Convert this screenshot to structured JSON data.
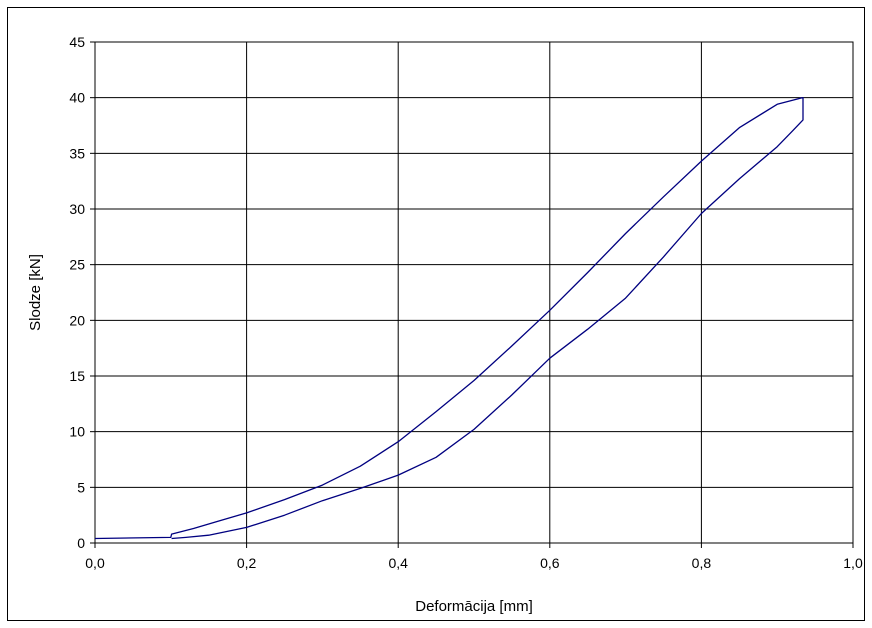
{
  "chart_data": {
    "type": "line",
    "title": "",
    "xlabel": "Deformācija [mm]",
    "ylabel": "Slodze [kN]",
    "xlim": [
      0,
      1.0
    ],
    "ylim": [
      0,
      45
    ],
    "x_ticks": [
      0,
      0.2,
      0.4,
      0.6,
      0.8,
      1.0
    ],
    "x_tick_labels": [
      "0,0",
      "0,2",
      "0,4",
      "0,6",
      "0,8",
      "1,0"
    ],
    "y_ticks": [
      0,
      5,
      10,
      15,
      20,
      25,
      30,
      35,
      40,
      45
    ],
    "y_tick_labels": [
      "0",
      "5",
      "10",
      "15",
      "20",
      "25",
      "30",
      "35",
      "40",
      "45"
    ],
    "grid": true,
    "legend": "none",
    "line_color": "#000080",
    "series": [
      {
        "x": [
          0.0,
          0.1,
          0.101,
          0.13,
          0.16,
          0.2,
          0.25,
          0.3,
          0.35,
          0.4,
          0.45,
          0.5,
          0.55,
          0.6,
          0.65,
          0.7,
          0.75,
          0.8,
          0.85,
          0.9,
          0.933,
          0.934,
          0.934,
          0.92,
          0.9,
          0.85,
          0.8,
          0.75,
          0.7,
          0.65,
          0.6,
          0.55,
          0.5,
          0.45,
          0.4,
          0.35,
          0.3,
          0.25,
          0.2,
          0.15,
          0.12,
          0.101
        ],
        "y": [
          0.4,
          0.5,
          0.8,
          1.3,
          1.9,
          2.7,
          3.9,
          5.2,
          6.9,
          9.1,
          11.8,
          14.6,
          17.7,
          20.9,
          24.3,
          27.8,
          31.1,
          34.3,
          37.3,
          39.4,
          40.0,
          40.0,
          38.0,
          37.0,
          35.6,
          32.7,
          29.6,
          25.7,
          22.0,
          19.2,
          16.6,
          13.3,
          10.2,
          7.7,
          6.1,
          4.9,
          3.8,
          2.5,
          1.4,
          0.7,
          0.5,
          0.4
        ]
      }
    ]
  }
}
